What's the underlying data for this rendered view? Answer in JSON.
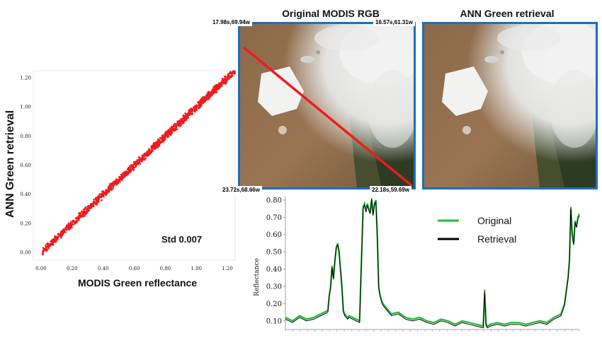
{
  "scatter": {
    "ylabel": "ANN Green retrieval",
    "xlabel": "MODIS Green reflectance",
    "std_label": "Std 0.007",
    "color": "#ee1c1c",
    "x_ticks": [
      "0.00",
      "0.20",
      "0.40",
      "0.60",
      "0.80",
      "1.00",
      "1.20"
    ],
    "y_ticks": [
      "0.00",
      "0.20",
      "0.40",
      "0.60",
      "0.80",
      "1.00",
      "1.20"
    ],
    "xlim": [
      -0.05,
      1.25
    ],
    "ylim": [
      -0.05,
      1.25
    ]
  },
  "images": {
    "left_title": "Original MODIS RGB",
    "right_title": "ANN Green retrieval",
    "coord_top_left": "17.98s,69.94w",
    "coord_top_right": "16.57s,61.31w",
    "coord_bottom_left": "23.72s,68.66w",
    "coord_bottom_right": "22.18s,59.69w",
    "frame_color": "#1d6fb8",
    "transect_color": "#ee1c1c"
  },
  "line_legend": {
    "original": "Original",
    "retrieval": "Retrieval"
  },
  "chart_data": {
    "type": "line",
    "ylabel": "Reflectance",
    "xlabel": "",
    "ylim": [
      0.05,
      0.82
    ],
    "y_ticks": [
      "0.10",
      "0.20",
      "0.30",
      "0.40",
      "0.50",
      "0.60",
      "0.70",
      "0.80"
    ],
    "x": [
      0,
      10,
      20,
      30,
      40,
      50,
      60,
      62,
      64,
      66,
      68,
      70,
      72,
      74,
      76,
      78,
      80,
      82,
      84,
      86,
      88,
      90,
      100,
      105,
      110,
      112,
      114,
      116,
      118,
      120,
      122,
      124,
      126,
      128,
      130,
      132,
      134,
      136,
      138,
      140,
      150,
      160,
      170,
      180,
      190,
      200,
      210,
      220,
      230,
      240,
      250,
      260,
      270,
      280,
      282,
      284,
      286,
      290,
      300,
      310,
      320,
      330,
      340,
      350,
      360,
      370,
      380,
      390,
      395,
      400,
      402,
      404,
      406,
      408,
      410,
      412,
      414,
      416
    ],
    "series": [
      {
        "name": "Original",
        "color": "#22bb33",
        "values": [
          0.12,
          0.1,
          0.13,
          0.11,
          0.12,
          0.14,
          0.16,
          0.25,
          0.3,
          0.42,
          0.35,
          0.44,
          0.52,
          0.55,
          0.5,
          0.4,
          0.3,
          0.16,
          0.14,
          0.13,
          0.12,
          0.13,
          0.11,
          0.1,
          0.76,
          0.78,
          0.74,
          0.78,
          0.75,
          0.73,
          0.8,
          0.72,
          0.78,
          0.8,
          0.6,
          0.3,
          0.25,
          0.22,
          0.2,
          0.19,
          0.14,
          0.15,
          0.12,
          0.11,
          0.12,
          0.1,
          0.09,
          0.11,
          0.1,
          0.08,
          0.1,
          0.09,
          0.08,
          0.07,
          0.26,
          0.08,
          0.07,
          0.08,
          0.09,
          0.08,
          0.09,
          0.09,
          0.08,
          0.09,
          0.1,
          0.09,
          0.12,
          0.14,
          0.2,
          0.35,
          0.45,
          0.75,
          0.6,
          0.55,
          0.68,
          0.65,
          0.7,
          0.72
        ]
      },
      {
        "name": "Retrieval",
        "color": "#000000",
        "values": [
          0.11,
          0.09,
          0.12,
          0.1,
          0.11,
          0.13,
          0.15,
          0.24,
          0.29,
          0.41,
          0.34,
          0.45,
          0.53,
          0.54,
          0.49,
          0.39,
          0.29,
          0.15,
          0.13,
          0.12,
          0.11,
          0.12,
          0.1,
          0.09,
          0.75,
          0.77,
          0.73,
          0.77,
          0.74,
          0.72,
          0.81,
          0.71,
          0.77,
          0.79,
          0.59,
          0.29,
          0.24,
          0.21,
          0.19,
          0.18,
          0.13,
          0.14,
          0.11,
          0.1,
          0.11,
          0.09,
          0.08,
          0.1,
          0.09,
          0.07,
          0.09,
          0.08,
          0.07,
          0.06,
          0.28,
          0.07,
          0.06,
          0.07,
          0.08,
          0.07,
          0.08,
          0.08,
          0.07,
          0.08,
          0.09,
          0.08,
          0.11,
          0.13,
          0.19,
          0.34,
          0.44,
          0.76,
          0.59,
          0.54,
          0.67,
          0.64,
          0.69,
          0.71
        ]
      }
    ]
  }
}
